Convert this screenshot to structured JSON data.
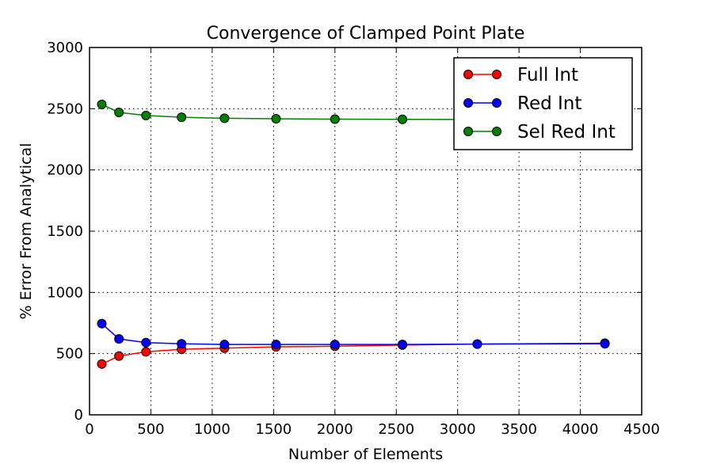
{
  "chart_data": {
    "type": "line",
    "title": "Convergence of Clamped Point Plate",
    "xlabel": "Number of Elements",
    "ylabel": "% Error From Analytical",
    "xlim": [
      0,
      4500
    ],
    "ylim": [
      0,
      3000
    ],
    "xticks": [
      0,
      500,
      1000,
      1500,
      2000,
      2500,
      3000,
      3500,
      4000,
      4500
    ],
    "yticks": [
      0,
      500,
      1000,
      1500,
      2000,
      2500,
      3000
    ],
    "grid": true,
    "legend_position": "upper right",
    "x": [
      100,
      240,
      460,
      750,
      1100,
      1520,
      2000,
      2550,
      3160,
      4200
    ],
    "series": [
      {
        "name": "Full Int",
        "color": "#ff0000",
        "values": [
          415,
          480,
          515,
          535,
          545,
          555,
          560,
          570,
          578,
          585
        ]
      },
      {
        "name": "Red Int",
        "color": "#0000ff",
        "values": [
          745,
          620,
          590,
          580,
          575,
          575,
          575,
          575,
          578,
          580
        ]
      },
      {
        "name": "Sel Red Int",
        "color": "#008000",
        "values": [
          2535,
          2470,
          2445,
          2430,
          2422,
          2418,
          2415,
          2413,
          2412,
          2412
        ]
      }
    ]
  }
}
